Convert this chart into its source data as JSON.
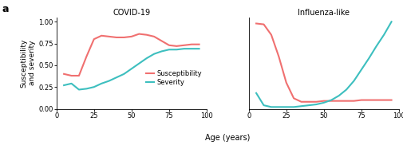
{
  "title_left": "COVID-19",
  "title_right": "Influenza-like",
  "panel_label": "a",
  "xlabel": "Age (years)",
  "ylabel": "Susceptibility\nand severity",
  "susceptibility_color": "#F07070",
  "severity_color": "#3DBFBF",
  "legend_susceptibility": "Susceptibility",
  "legend_severity": "Severity",
  "covid_susceptibility_x": [
    5,
    10,
    15,
    20,
    25,
    30,
    35,
    40,
    45,
    50,
    55,
    60,
    65,
    70,
    75,
    80,
    85,
    90,
    95
  ],
  "covid_susceptibility_y": [
    0.4,
    0.38,
    0.38,
    0.6,
    0.8,
    0.84,
    0.83,
    0.82,
    0.82,
    0.83,
    0.86,
    0.85,
    0.83,
    0.78,
    0.73,
    0.72,
    0.73,
    0.74,
    0.74
  ],
  "covid_severity_x": [
    5,
    10,
    15,
    20,
    25,
    30,
    35,
    40,
    45,
    50,
    55,
    60,
    65,
    70,
    75,
    80,
    85,
    90,
    95
  ],
  "covid_severity_y": [
    0.27,
    0.29,
    0.22,
    0.23,
    0.25,
    0.29,
    0.32,
    0.36,
    0.4,
    0.46,
    0.52,
    0.58,
    0.63,
    0.66,
    0.68,
    0.68,
    0.69,
    0.69,
    0.69
  ],
  "flu_susceptibility_x": [
    5,
    10,
    15,
    20,
    25,
    30,
    35,
    40,
    45,
    50,
    55,
    60,
    65,
    70,
    75,
    80,
    85,
    90,
    95
  ],
  "flu_susceptibility_y": [
    0.98,
    0.97,
    0.85,
    0.6,
    0.3,
    0.12,
    0.08,
    0.08,
    0.08,
    0.09,
    0.09,
    0.09,
    0.09,
    0.09,
    0.1,
    0.1,
    0.1,
    0.1,
    0.1
  ],
  "flu_severity_x": [
    5,
    10,
    15,
    20,
    25,
    30,
    35,
    40,
    45,
    50,
    55,
    60,
    65,
    70,
    75,
    80,
    85,
    90,
    95
  ],
  "flu_severity_y": [
    0.18,
    0.04,
    0.02,
    0.02,
    0.02,
    0.02,
    0.03,
    0.04,
    0.05,
    0.07,
    0.1,
    0.15,
    0.22,
    0.32,
    0.45,
    0.58,
    0.72,
    0.85,
    1.0
  ],
  "ylim": [
    0,
    1.05
  ],
  "xlim": [
    0,
    100
  ],
  "xticks": [
    0,
    25,
    50,
    75,
    100
  ],
  "yticks": [
    0,
    0.25,
    0.5,
    0.75,
    1.0
  ],
  "background_color": "#ffffff",
  "linewidth": 1.5,
  "tick_labelsize": 6,
  "title_fontsize": 7,
  "ylabel_fontsize": 6.5,
  "xlabel_fontsize": 7,
  "legend_fontsize": 6,
  "panel_fontsize": 9
}
